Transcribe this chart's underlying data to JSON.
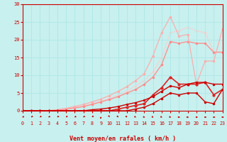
{
  "xlabel": "Vent moyen/en rafales ( km/h )",
  "xlim": [
    0,
    23
  ],
  "ylim": [
    0,
    30
  ],
  "xticks": [
    0,
    1,
    2,
    3,
    4,
    5,
    6,
    7,
    8,
    9,
    10,
    11,
    12,
    13,
    14,
    15,
    16,
    17,
    18,
    19,
    20,
    21,
    22,
    23
  ],
  "yticks": [
    0,
    5,
    10,
    15,
    20,
    25,
    30
  ],
  "bg_color": "#c8f0ee",
  "grid_color": "#b0e8e8",
  "axis_color": "#cc0000",
  "lines": [
    {
      "x": [
        0,
        1,
        2,
        3,
        4,
        5,
        6,
        7,
        8,
        9,
        10,
        11,
        12,
        13,
        14,
        15,
        16,
        17,
        18,
        19,
        20,
        21,
        22,
        23
      ],
      "y": [
        0,
        0,
        0,
        0,
        0,
        0,
        0,
        0,
        0,
        0,
        0,
        0,
        0,
        0.5,
        1.0,
        2.0,
        3.5,
        5.0,
        4.5,
        5.0,
        5.0,
        2.5,
        2.0,
        6.0
      ],
      "color": "#cc0000",
      "linewidth": 1.0,
      "marker": "o",
      "markersize": 1.5,
      "alpha": 1.0,
      "zorder": 4
    },
    {
      "x": [
        0,
        1,
        2,
        3,
        4,
        5,
        6,
        7,
        8,
        9,
        10,
        11,
        12,
        13,
        14,
        15,
        16,
        17,
        18,
        19,
        20,
        21,
        22,
        23
      ],
      "y": [
        0,
        0,
        0,
        0,
        0,
        0,
        0,
        0,
        0,
        0,
        0,
        0.5,
        1.0,
        1.5,
        2.0,
        4.5,
        6.5,
        9.5,
        7.5,
        7.5,
        7.5,
        8.0,
        4.5,
        6.0
      ],
      "color": "#dd2222",
      "linewidth": 1.2,
      "marker": "o",
      "markersize": 2.0,
      "alpha": 1.0,
      "zorder": 3
    },
    {
      "x": [
        0,
        1,
        2,
        3,
        4,
        5,
        6,
        7,
        8,
        9,
        10,
        11,
        12,
        13,
        14,
        15,
        16,
        17,
        18,
        19,
        20,
        21,
        22,
        23
      ],
      "y": [
        0,
        0,
        0,
        0,
        0,
        0,
        0,
        0,
        0.3,
        0.5,
        0.8,
        1.2,
        1.8,
        2.3,
        3.0,
        4.0,
        5.5,
        7.0,
        6.5,
        7.5,
        8.0,
        8.0,
        7.5,
        7.5
      ],
      "color": "#cc0000",
      "linewidth": 1.0,
      "marker": "o",
      "markersize": 1.5,
      "alpha": 1.0,
      "zorder": 3
    },
    {
      "x": [
        0,
        1,
        2,
        3,
        4,
        5,
        6,
        7,
        8,
        9,
        10,
        11,
        12,
        13,
        14,
        15,
        16,
        17,
        18,
        19,
        20,
        21,
        22,
        23
      ],
      "y": [
        0,
        0,
        0,
        0,
        0.2,
        0.5,
        0.8,
        1.2,
        1.8,
        2.5,
        3.2,
        4.0,
        5.0,
        6.0,
        7.5,
        9.5,
        13.0,
        19.5,
        19.0,
        19.5,
        19.0,
        19.0,
        16.5,
        16.5
      ],
      "color": "#ff8888",
      "linewidth": 1.0,
      "marker": "o",
      "markersize": 1.5,
      "alpha": 0.9,
      "zorder": 2
    },
    {
      "x": [
        0,
        1,
        2,
        3,
        4,
        5,
        6,
        7,
        8,
        9,
        10,
        11,
        12,
        13,
        14,
        15,
        16,
        17,
        18,
        19,
        20,
        21,
        22,
        23
      ],
      "y": [
        0,
        0,
        0,
        0,
        0.3,
        0.7,
        1.2,
        1.8,
        2.5,
        3.3,
        4.3,
        5.5,
        6.8,
        8.5,
        10.5,
        15.5,
        22.0,
        26.5,
        21.0,
        21.5,
        7.5,
        14.0,
        14.0,
        23.0
      ],
      "color": "#ffaaaa",
      "linewidth": 1.0,
      "marker": "o",
      "markersize": 1.5,
      "alpha": 0.85,
      "zorder": 2
    },
    {
      "x": [
        0,
        1,
        2,
        3,
        4,
        5,
        6,
        7,
        8,
        9,
        10,
        11,
        12,
        13,
        14,
        15,
        16,
        17,
        18,
        19,
        20,
        21,
        22,
        23
      ],
      "y": [
        0,
        0,
        0,
        0,
        0.2,
        0.5,
        0.9,
        1.4,
        2.0,
        2.7,
        3.5,
        4.5,
        5.5,
        7.0,
        8.5,
        11.0,
        15.0,
        22.0,
        22.5,
        23.5,
        22.5,
        22.0,
        16.5,
        16.5
      ],
      "color": "#ffcccc",
      "linewidth": 1.0,
      "marker": "o",
      "markersize": 1.5,
      "alpha": 0.7,
      "zorder": 1
    }
  ],
  "arrow_angles": [
    225,
    215,
    215,
    220,
    215,
    215,
    220,
    215,
    210,
    185,
    160,
    150,
    145,
    135,
    125,
    130,
    130,
    125,
    95,
    90,
    270,
    272,
    270,
    270
  ]
}
